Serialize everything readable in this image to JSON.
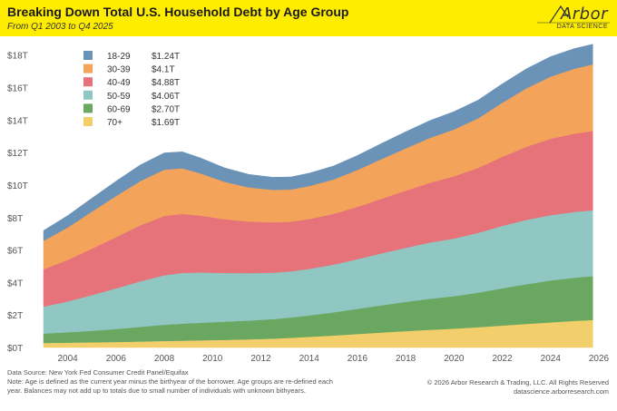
{
  "header": {
    "title": "Breaking Down Total U.S. Household Debt by Age Group",
    "subtitle": "From Q1 2003 to Q4 2025",
    "logo_text": "Arbor",
    "logo_sub": "DATA SCIENCE",
    "background_color": "#ffed00"
  },
  "footer": {
    "source": "Data Source: New York Fed Consumer Credit Panel/Equifax",
    "note": "Note: Age is defined as the current year minus the birthyear of the borrower. Age groups are re-defined each year. Balances may not add up to totals due to small number of individuals with unknown bithyears.",
    "copyright": "© 2026 Arbor Research & Trading, LLC. All Rights Reserved",
    "website": "datascience.arborresearch.com"
  },
  "chart_data": {
    "type": "area",
    "stacked": true,
    "title": "Breaking Down Total U.S. Household Debt by Age Group",
    "subtitle": "From Q1 2003 to Q4 2025",
    "xlabel": "",
    "ylabel": "",
    "x": [
      2003.0,
      2004.0,
      2005.0,
      2006.0,
      2007.0,
      2008.0,
      2008.75,
      2009.5,
      2010.5,
      2011.5,
      2012.5,
      2013.25,
      2014.0,
      2015.0,
      2016.0,
      2017.0,
      2018.0,
      2019.0,
      2020.0,
      2021.0,
      2022.0,
      2023.0,
      2024.0,
      2025.0,
      2025.75
    ],
    "xlim": [
      2003.0,
      2026.0
    ],
    "ylim": [
      0,
      18.6
    ],
    "x_ticks": [
      "2004",
      "2006",
      "2008",
      "2010",
      "2012",
      "2014",
      "2016",
      "2018",
      "2020",
      "2022",
      "2024",
      "2026"
    ],
    "y_ticks": [
      "$0T",
      "$2T",
      "$4T",
      "$6T",
      "$8T",
      "$10T",
      "$12T",
      "$14T",
      "$16T",
      "$18T"
    ],
    "grid": false,
    "legend_position": "top-left",
    "series": [
      {
        "name": "70+",
        "total": "$1.69T",
        "color": "#f2cf6a",
        "values": [
          0.28,
          0.3,
          0.32,
          0.34,
          0.37,
          0.4,
          0.42,
          0.44,
          0.47,
          0.5,
          0.55,
          0.6,
          0.66,
          0.74,
          0.83,
          0.92,
          1.01,
          1.09,
          1.16,
          1.25,
          1.35,
          1.45,
          1.55,
          1.64,
          1.69
        ]
      },
      {
        "name": "60-69",
        "total": "$2.70T",
        "color": "#6aa861",
        "values": [
          0.58,
          0.64,
          0.71,
          0.8,
          0.9,
          1.0,
          1.05,
          1.08,
          1.12,
          1.16,
          1.2,
          1.25,
          1.32,
          1.42,
          1.55,
          1.68,
          1.8,
          1.91,
          2.0,
          2.13,
          2.3,
          2.45,
          2.58,
          2.66,
          2.7
        ]
      },
      {
        "name": "50-59",
        "total": "$4.06T",
        "color": "#90c7c2",
        "values": [
          1.66,
          1.9,
          2.2,
          2.5,
          2.8,
          3.05,
          3.12,
          3.1,
          3.0,
          2.92,
          2.86,
          2.84,
          2.86,
          2.94,
          3.06,
          3.2,
          3.33,
          3.46,
          3.55,
          3.68,
          3.84,
          3.96,
          4.02,
          4.05,
          4.06
        ]
      },
      {
        "name": "40-49",
        "total": "$4.88T",
        "color": "#e6727a",
        "values": [
          2.3,
          2.55,
          2.85,
          3.15,
          3.45,
          3.65,
          3.64,
          3.5,
          3.31,
          3.18,
          3.1,
          3.06,
          3.07,
          3.12,
          3.22,
          3.36,
          3.52,
          3.68,
          3.83,
          4.0,
          4.25,
          4.5,
          4.7,
          4.82,
          4.88
        ]
      },
      {
        "name": "30-39",
        "total": "$4.1T",
        "color": "#f3a45a",
        "values": [
          1.75,
          2.0,
          2.28,
          2.53,
          2.72,
          2.85,
          2.8,
          2.6,
          2.3,
          2.1,
          2.0,
          1.98,
          2.03,
          2.12,
          2.27,
          2.44,
          2.6,
          2.76,
          2.88,
          3.05,
          3.33,
          3.6,
          3.83,
          4.0,
          4.1
        ]
      },
      {
        "name": "18-29",
        "total": "$1.24T",
        "color": "#6b93b8",
        "values": [
          0.63,
          0.73,
          0.83,
          0.92,
          0.99,
          1.03,
          1.02,
          0.95,
          0.86,
          0.8,
          0.77,
          0.77,
          0.79,
          0.83,
          0.89,
          0.96,
          1.02,
          1.07,
          1.1,
          1.12,
          1.16,
          1.2,
          1.23,
          1.24,
          1.24
        ]
      }
    ]
  }
}
